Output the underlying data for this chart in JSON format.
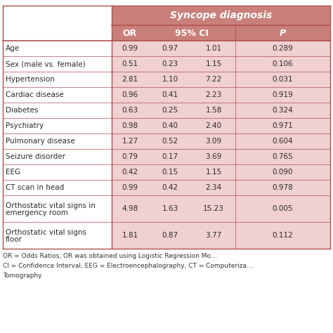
{
  "title": "Syncope diagnosis",
  "rows": [
    {
      "label": "Age",
      "or": "0.99",
      "ci_low": "0.97",
      "ci_high": "1.01",
      "p": "0.289"
    },
    {
      "label": "Sex (male vs. female)",
      "or": "0.51",
      "ci_low": "0.23",
      "ci_high": "1.15",
      "p": "0.106"
    },
    {
      "label": "Hypertension",
      "or": "2.81",
      "ci_low": "1.10",
      "ci_high": "7.22",
      "p": "0.031"
    },
    {
      "label": "Cardiac disease",
      "or": "0.96",
      "ci_low": "0.41",
      "ci_high": "2.23",
      "p": "0.919"
    },
    {
      "label": "Diabetes",
      "or": "0.63",
      "ci_low": "0.25",
      "ci_high": "1.58",
      "p": "0.324"
    },
    {
      "label": "Psychiatry",
      "or": "0.98",
      "ci_low": "0.40",
      "ci_high": "2.40",
      "p": "0.971"
    },
    {
      "label": "Pulmonary disease",
      "or": "1.27",
      "ci_low": "0.52",
      "ci_high": "3.09",
      "p": "0.604"
    },
    {
      "label": "Seizure disorder",
      "or": "0.79",
      "ci_low": "0.17",
      "ci_high": "3.69",
      "p": "0.765"
    },
    {
      "label": "EEG",
      "or": "0.42",
      "ci_low": "0.15",
      "ci_high": "1.15",
      "p": "0.090"
    },
    {
      "label": "CT scan in head",
      "or": "0.99",
      "ci_low": "0.42",
      "ci_high": "2.34",
      "p": "0.978"
    },
    {
      "label": "Orthostatic vital signs in\nemergency room",
      "or": "4.98",
      "ci_low": "1.63",
      "ci_high": "15.23",
      "p": "0.005"
    },
    {
      "label": "Orthostatic vital signs\nfloor",
      "or": "1.81",
      "ci_low": "0.87",
      "ci_high": "3.77",
      "p": "0.112"
    }
  ],
  "footnote_lines": [
    "OR = Odds Ratios, OR was obtained using Logistic Regression Mo…",
    "CI = Confidence Interval, EEG = Electroencephalography, CT = Computeriza…",
    "Tomography"
  ],
  "header_bg": "#c9807a",
  "body_bg": "#f0d0d0",
  "border_color": "#b05050",
  "text_dark": "#2a2a2a"
}
